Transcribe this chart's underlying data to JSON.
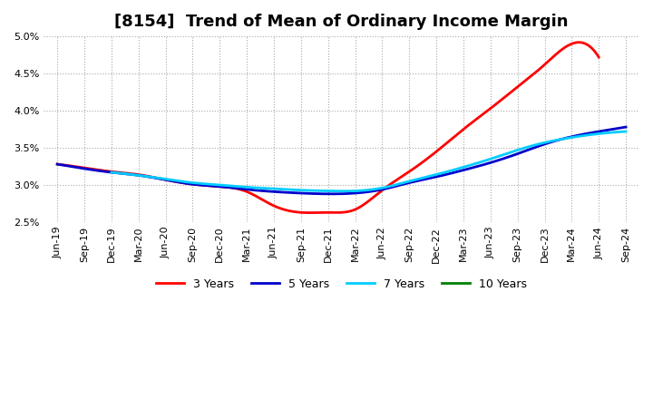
{
  "title": "[8154]  Trend of Mean of Ordinary Income Margin",
  "ylim": [
    0.025,
    0.05
  ],
  "yticks": [
    0.025,
    0.03,
    0.035,
    0.04,
    0.045,
    0.05
  ],
  "ytick_labels": [
    "2.5%",
    "3.0%",
    "3.5%",
    "4.0%",
    "4.5%",
    "5.0%"
  ],
  "x_labels": [
    "Jun-19",
    "Sep-19",
    "Dec-19",
    "Mar-20",
    "Jun-20",
    "Sep-20",
    "Dec-20",
    "Mar-21",
    "Jun-21",
    "Sep-21",
    "Dec-21",
    "Mar-22",
    "Jun-22",
    "Sep-22",
    "Dec-22",
    "Mar-23",
    "Jun-23",
    "Sep-23",
    "Dec-23",
    "Mar-24",
    "Jun-24",
    "Sep-24"
  ],
  "series": {
    "3 Years": {
      "color": "#ff0000",
      "values": [
        0.0328,
        0.0323,
        0.0318,
        0.0314,
        0.0307,
        0.0301,
        0.0298,
        0.0291,
        0.0272,
        0.0263,
        0.0263,
        0.0267,
        0.0293,
        0.0318,
        0.0345,
        0.0375,
        0.0403,
        0.0432,
        0.0462,
        0.049,
        0.0472,
        null
      ]
    },
    "5 Years": {
      "color": "#0000cc",
      "values": [
        0.0328,
        0.0322,
        0.0317,
        0.0313,
        0.0307,
        0.0301,
        0.0298,
        0.0294,
        0.0291,
        0.0289,
        0.0288,
        0.0289,
        0.0294,
        0.0303,
        0.0311,
        0.032,
        0.033,
        0.0342,
        0.0355,
        0.0365,
        0.0372,
        0.0378
      ]
    },
    "7 Years": {
      "color": "#00ccff",
      "values": [
        null,
        null,
        0.0317,
        0.0313,
        0.0308,
        0.0303,
        0.03,
        0.0297,
        0.0295,
        0.0293,
        0.0292,
        0.0292,
        0.0296,
        0.0305,
        0.0314,
        0.0324,
        0.0335,
        0.0347,
        0.0357,
        0.0364,
        0.0369,
        0.0372
      ]
    },
    "10 Years": {
      "color": "#008000",
      "values": [
        null,
        null,
        null,
        null,
        null,
        null,
        null,
        null,
        null,
        null,
        null,
        null,
        null,
        null,
        null,
        null,
        null,
        null,
        null,
        null,
        null,
        null
      ]
    }
  },
  "background_color": "#ffffff",
  "plot_bg_color": "#ffffff",
  "grid_color": "#aaaaaa",
  "title_fontsize": 13,
  "tick_fontsize": 8,
  "legend_fontsize": 9,
  "linewidth": 2.0
}
